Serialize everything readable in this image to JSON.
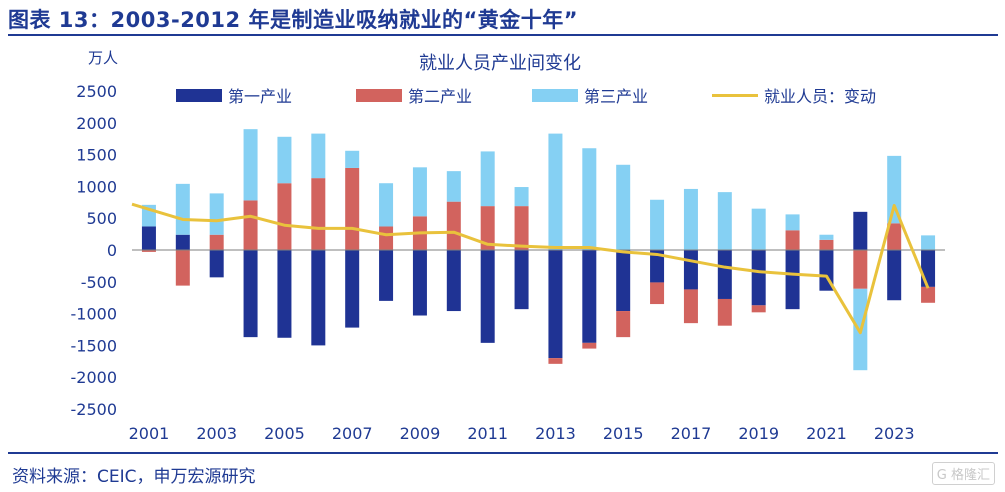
{
  "figure": {
    "title": "图表 13：2003-2012 年是制造业吸纳就业的“黄金十年”",
    "source": "资料来源：CEIC，申万宏源研究",
    "watermark": "G 格隆汇"
  },
  "colors": {
    "primary": "#1f3394",
    "secondary": "#d2635e",
    "tertiary": "#85d0f3",
    "line": "#e9c23c",
    "axis_text": "#1f3a93"
  },
  "chart_data": {
    "type": "bar",
    "stacked": true,
    "title": "就业人员产业间变化",
    "ylabel": "万人",
    "ylim": [
      -2500,
      2500
    ],
    "yticks": [
      2500,
      2000,
      1500,
      1000,
      500,
      0,
      -500,
      -1000,
      -1500,
      -2000,
      -2500
    ],
    "x": [
      2001,
      2002,
      2003,
      2004,
      2005,
      2006,
      2007,
      2008,
      2009,
      2010,
      2011,
      2012,
      2013,
      2014,
      2015,
      2016,
      2017,
      2018,
      2019,
      2020,
      2021,
      2022,
      2023,
      2024
    ],
    "xtick_labels": [
      "2001",
      "2003",
      "2005",
      "2007",
      "2009",
      "2011",
      "2013",
      "2015",
      "2017",
      "2019",
      "2021",
      "2023"
    ],
    "legend_position": "top",
    "grid": false,
    "series": [
      {
        "name": "第一产业",
        "kind": "bar",
        "values": [
          370,
          240,
          -430,
          -1370,
          -1380,
          -1500,
          -1220,
          -800,
          -1030,
          -960,
          -1460,
          -930,
          -1700,
          -1460,
          -960,
          -510,
          -620,
          -770,
          -870,
          -930,
          -640,
          600,
          -790,
          -580
        ]
      },
      {
        "name": "第二产业",
        "kind": "bar",
        "values": [
          -30,
          -560,
          240,
          780,
          1050,
          1130,
          1290,
          370,
          530,
          760,
          690,
          690,
          -90,
          -90,
          -410,
          -340,
          -530,
          -420,
          -110,
          310,
          160,
          -610,
          420,
          -250
        ]
      },
      {
        "name": "第三产业",
        "kind": "bar",
        "values": [
          340,
          800,
          650,
          1120,
          730,
          700,
          270,
          680,
          770,
          480,
          860,
          300,
          1830,
          1600,
          1340,
          790,
          960,
          910,
          650,
          250,
          80,
          -1280,
          1060,
          230
        ]
      },
      {
        "name": "就业人员：变动",
        "kind": "line",
        "values": [
          720,
          480,
          460,
          530,
          390,
          340,
          340,
          240,
          270,
          280,
          90,
          60,
          40,
          40,
          -30,
          -70,
          -170,
          -270,
          -340,
          -380,
          -410,
          -1300,
          700,
          -600
        ]
      }
    ]
  }
}
